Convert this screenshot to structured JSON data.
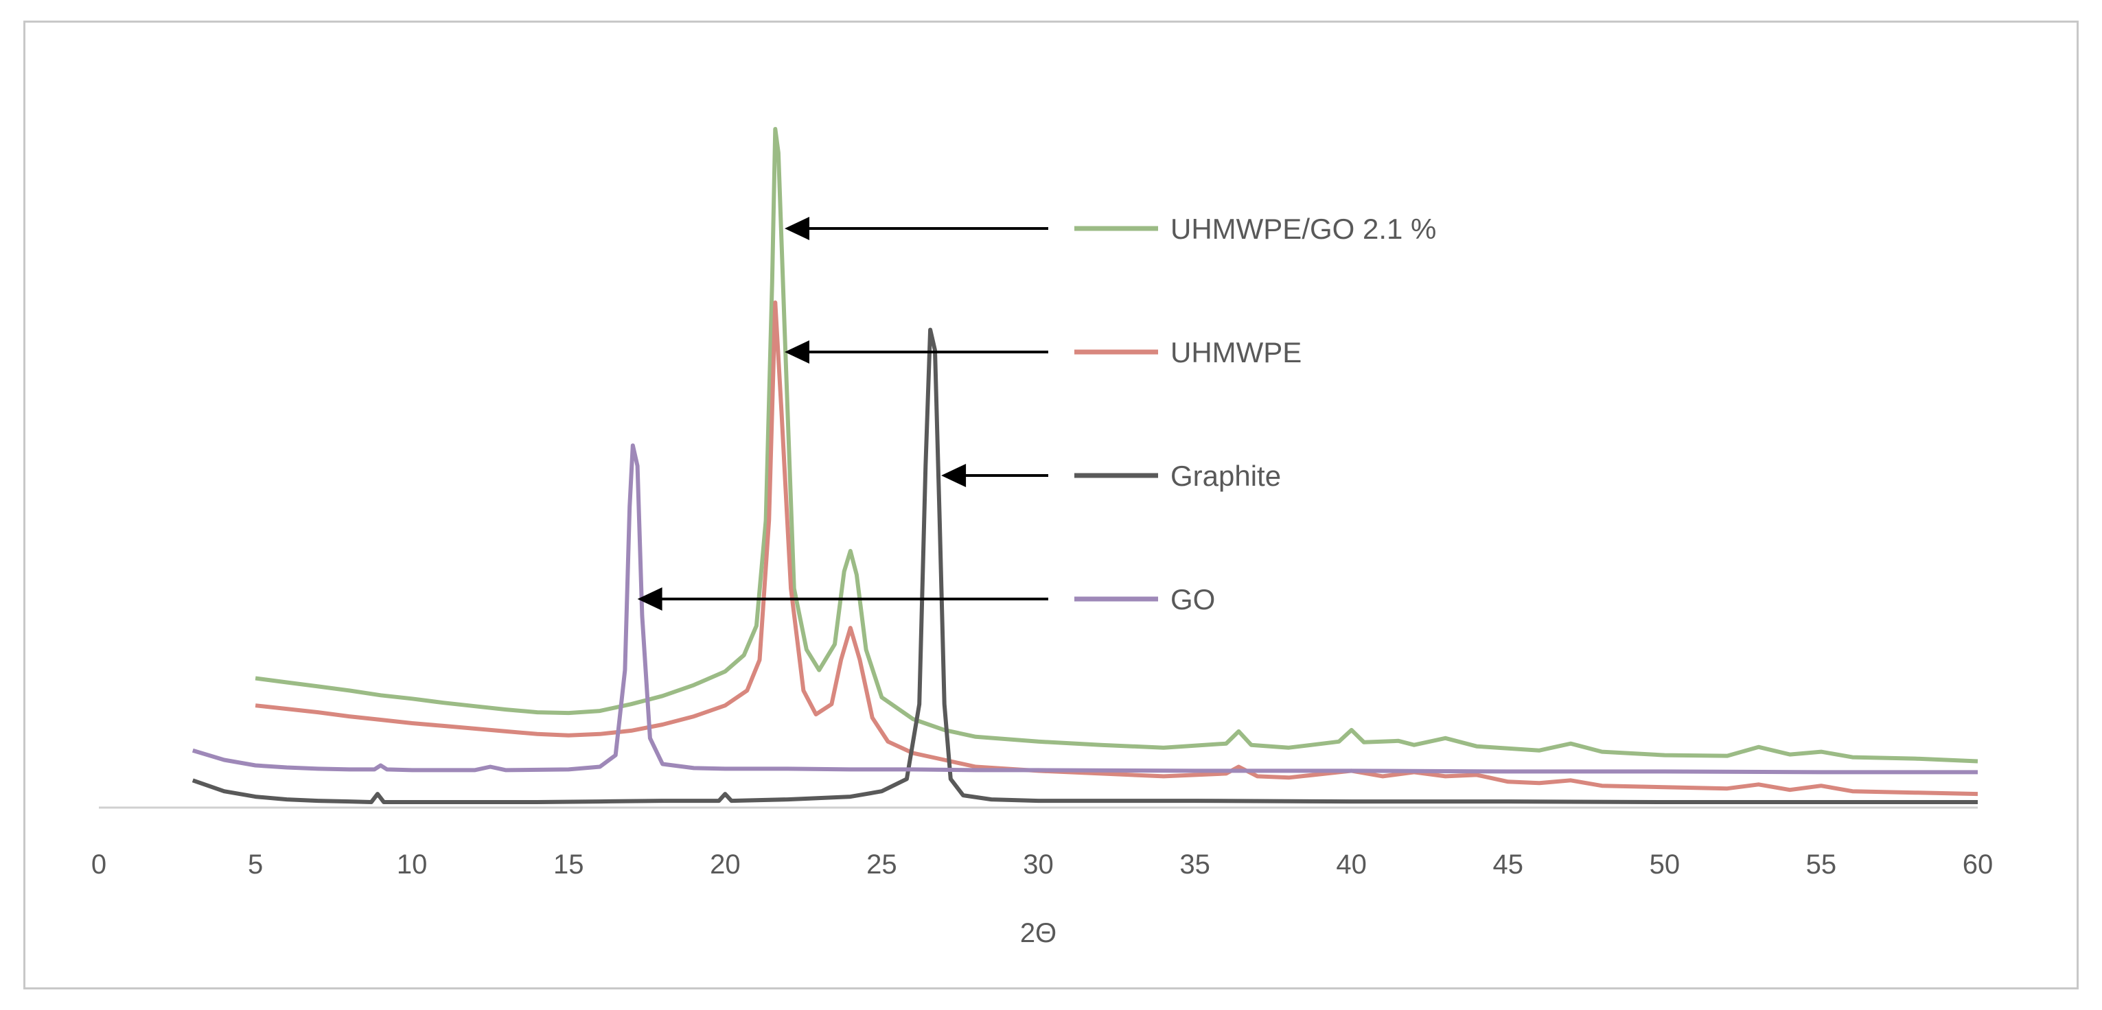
{
  "chart_data": {
    "type": "line",
    "title": "",
    "xlabel": "2Θ",
    "ylabel": "",
    "xlim": [
      0,
      60
    ],
    "ylim": [
      0,
      1000
    ],
    "x_ticks": [
      "0",
      "5",
      "10",
      "15",
      "20",
      "25",
      "30",
      "35",
      "40",
      "45",
      "50",
      "55",
      "60"
    ],
    "grid": false,
    "legend_placement": "annotated arrows, upper right",
    "series": [
      {
        "name": "UHMWPE/GO 2.1 %",
        "color": "#9bbb85",
        "arrow_to_x": 21.9,
        "arrow_to_y": 930,
        "points": [
          [
            5,
            188
          ],
          [
            6,
            182
          ],
          [
            7,
            176
          ],
          [
            8,
            170
          ],
          [
            9,
            163
          ],
          [
            10,
            158
          ],
          [
            11,
            152
          ],
          [
            12,
            147
          ],
          [
            13,
            142
          ],
          [
            14,
            138
          ],
          [
            15,
            137
          ],
          [
            16,
            140
          ],
          [
            17,
            150
          ],
          [
            18,
            162
          ],
          [
            19,
            178
          ],
          [
            20,
            198
          ],
          [
            20.6,
            222
          ],
          [
            21,
            265
          ],
          [
            21.3,
            420
          ],
          [
            21.5,
            770
          ],
          [
            21.6,
            995
          ],
          [
            21.7,
            960
          ],
          [
            21.9,
            700
          ],
          [
            22.2,
            320
          ],
          [
            22.6,
            230
          ],
          [
            23,
            200
          ],
          [
            23.5,
            238
          ],
          [
            23.8,
            345
          ],
          [
            24,
            375
          ],
          [
            24.2,
            340
          ],
          [
            24.5,
            230
          ],
          [
            25,
            160
          ],
          [
            26,
            128
          ],
          [
            27,
            112
          ],
          [
            28,
            102
          ],
          [
            30,
            95
          ],
          [
            32,
            90
          ],
          [
            34,
            86
          ],
          [
            36,
            92
          ],
          [
            36.4,
            110
          ],
          [
            36.8,
            90
          ],
          [
            38,
            86
          ],
          [
            39.6,
            95
          ],
          [
            40,
            112
          ],
          [
            40.4,
            94
          ],
          [
            41.5,
            96
          ],
          [
            42,
            90
          ],
          [
            43,
            100
          ],
          [
            44,
            88
          ],
          [
            45,
            85
          ],
          [
            46,
            82
          ],
          [
            47,
            92
          ],
          [
            48,
            80
          ],
          [
            50,
            75
          ],
          [
            52,
            74
          ],
          [
            53,
            87
          ],
          [
            54,
            76
          ],
          [
            55,
            80
          ],
          [
            56,
            72
          ],
          [
            58,
            70
          ],
          [
            60,
            66
          ]
        ]
      },
      {
        "name": "UHMWPE",
        "color": "#d8877e",
        "arrow_to_x": 21.9,
        "arrow_to_y": 730,
        "points": [
          [
            5,
            148
          ],
          [
            6,
            143
          ],
          [
            7,
            138
          ],
          [
            8,
            132
          ],
          [
            9,
            127
          ],
          [
            10,
            122
          ],
          [
            11,
            118
          ],
          [
            12,
            114
          ],
          [
            13,
            110
          ],
          [
            14,
            106
          ],
          [
            15,
            104
          ],
          [
            16,
            106
          ],
          [
            17,
            111
          ],
          [
            18,
            120
          ],
          [
            19,
            132
          ],
          [
            20,
            148
          ],
          [
            20.7,
            170
          ],
          [
            21.1,
            215
          ],
          [
            21.4,
            420
          ],
          [
            21.6,
            740
          ],
          [
            21.8,
            580
          ],
          [
            22.1,
            320
          ],
          [
            22.5,
            170
          ],
          [
            22.9,
            135
          ],
          [
            23.4,
            150
          ],
          [
            23.7,
            215
          ],
          [
            24,
            262
          ],
          [
            24.3,
            215
          ],
          [
            24.7,
            130
          ],
          [
            25.2,
            95
          ],
          [
            26,
            78
          ],
          [
            27,
            68
          ],
          [
            28,
            58
          ],
          [
            30,
            52
          ],
          [
            32,
            48
          ],
          [
            34,
            44
          ],
          [
            36,
            48
          ],
          [
            36.4,
            58
          ],
          [
            37,
            44
          ],
          [
            38,
            42
          ],
          [
            40,
            52
          ],
          [
            41,
            44
          ],
          [
            42,
            50
          ],
          [
            43,
            44
          ],
          [
            44,
            46
          ],
          [
            45,
            36
          ],
          [
            46,
            34
          ],
          [
            47,
            38
          ],
          [
            48,
            30
          ],
          [
            50,
            28
          ],
          [
            52,
            26
          ],
          [
            53,
            32
          ],
          [
            54,
            24
          ],
          [
            55,
            30
          ],
          [
            56,
            22
          ],
          [
            58,
            20
          ],
          [
            60,
            18
          ]
        ]
      },
      {
        "name": "Graphite",
        "color": "#595959",
        "arrow_to_x": 26.9,
        "arrow_to_y": 530,
        "points": [
          [
            3,
            38
          ],
          [
            4,
            22
          ],
          [
            5,
            14
          ],
          [
            6,
            10
          ],
          [
            7,
            8
          ],
          [
            8,
            7
          ],
          [
            8.7,
            6
          ],
          [
            8.9,
            18
          ],
          [
            9.1,
            6
          ],
          [
            10,
            6
          ],
          [
            12,
            6
          ],
          [
            14,
            6
          ],
          [
            16,
            7
          ],
          [
            18,
            8
          ],
          [
            19.8,
            8
          ],
          [
            20,
            18
          ],
          [
            20.2,
            8
          ],
          [
            22,
            10
          ],
          [
            24,
            14
          ],
          [
            25,
            22
          ],
          [
            25.8,
            40
          ],
          [
            26.2,
            150
          ],
          [
            26.4,
            500
          ],
          [
            26.55,
            700
          ],
          [
            26.7,
            670
          ],
          [
            26.85,
            420
          ],
          [
            27,
            150
          ],
          [
            27.2,
            40
          ],
          [
            27.6,
            16
          ],
          [
            28.5,
            10
          ],
          [
            30,
            8
          ],
          [
            35,
            8
          ],
          [
            40,
            7
          ],
          [
            45,
            7
          ],
          [
            50,
            6
          ],
          [
            55,
            6
          ],
          [
            60,
            6
          ]
        ]
      },
      {
        "name": "GO",
        "color": "#9e88b8",
        "arrow_to_x": 17.2,
        "arrow_to_y": 330,
        "points": [
          [
            3,
            82
          ],
          [
            4,
            68
          ],
          [
            5,
            60
          ],
          [
            6,
            57
          ],
          [
            7,
            55
          ],
          [
            8,
            54
          ],
          [
            8.8,
            54
          ],
          [
            9,
            60
          ],
          [
            9.2,
            54
          ],
          [
            10,
            53
          ],
          [
            12,
            53
          ],
          [
            12.5,
            58
          ],
          [
            13,
            53
          ],
          [
            15,
            54
          ],
          [
            16,
            58
          ],
          [
            16.5,
            75
          ],
          [
            16.8,
            200
          ],
          [
            16.95,
            440
          ],
          [
            17.05,
            530
          ],
          [
            17.2,
            500
          ],
          [
            17.35,
            280
          ],
          [
            17.6,
            100
          ],
          [
            18,
            62
          ],
          [
            19,
            56
          ],
          [
            20,
            55
          ],
          [
            22,
            55
          ],
          [
            24,
            54
          ],
          [
            26,
            54
          ],
          [
            28,
            53
          ],
          [
            30,
            53
          ],
          [
            35,
            52
          ],
          [
            40,
            52
          ],
          [
            45,
            51
          ],
          [
            50,
            51
          ],
          [
            55,
            50
          ],
          [
            60,
            50
          ]
        ]
      }
    ]
  }
}
